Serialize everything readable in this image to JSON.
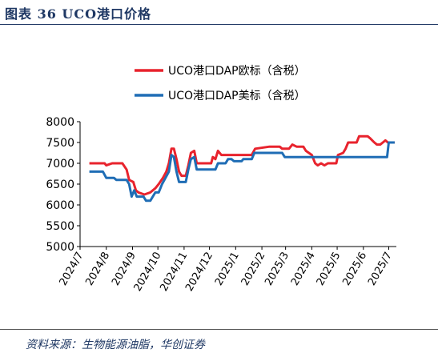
{
  "header": {
    "title": "图表 36   UCO港口价格"
  },
  "footer": {
    "source": "资料来源：生物能源油脂，华创证券"
  },
  "colors": {
    "eu_series": "#e8232d",
    "us_series": "#1f6db5",
    "title": "#1f3864"
  },
  "chart_data": {
    "type": "line",
    "title": "",
    "xlabel": "",
    "ylabel": "",
    "ylim": [
      5000,
      8000
    ],
    "yticks": [
      5000,
      5500,
      6000,
      6500,
      7000,
      7500,
      8000
    ],
    "x_tick_labels": [
      "2024/7",
      "2024/8",
      "2024/9",
      "2024/10",
      "2024/11",
      "2024/12",
      "2025/1",
      "2025/2",
      "2025/3",
      "2025/4",
      "2025/5",
      "2025/6",
      "2025/7"
    ],
    "legend_placement": "top",
    "grid": false,
    "series": [
      {
        "name": "UCO港口DAP欧标（含税）",
        "color": "#e8232d",
        "points": [
          [
            "2024-07-12",
            7000
          ],
          [
            "2024-07-30",
            7000
          ],
          [
            "2024-08-01",
            6950
          ],
          [
            "2024-08-08",
            7000
          ],
          [
            "2024-08-20",
            7000
          ],
          [
            "2024-08-25",
            6850
          ],
          [
            "2024-08-28",
            6600
          ],
          [
            "2024-09-02",
            6550
          ],
          [
            "2024-09-05",
            6350
          ],
          [
            "2024-09-08",
            6300
          ],
          [
            "2024-09-15",
            6250
          ],
          [
            "2024-09-22",
            6300
          ],
          [
            "2024-09-28",
            6400
          ],
          [
            "2024-10-02",
            6500
          ],
          [
            "2024-10-07",
            6650
          ],
          [
            "2024-10-11",
            6800
          ],
          [
            "2024-10-14",
            7000
          ],
          [
            "2024-10-17",
            7350
          ],
          [
            "2024-10-20",
            7350
          ],
          [
            "2024-10-23",
            7100
          ],
          [
            "2024-10-26",
            6800
          ],
          [
            "2024-10-29",
            6700
          ],
          [
            "2024-11-03",
            6700
          ],
          [
            "2024-11-06",
            6950
          ],
          [
            "2024-11-09",
            7250
          ],
          [
            "2024-11-13",
            7300
          ],
          [
            "2024-11-16",
            7000
          ],
          [
            "2024-12-03",
            7000
          ],
          [
            "2024-12-05",
            7150
          ],
          [
            "2024-12-08",
            7100
          ],
          [
            "2024-12-11",
            7300
          ],
          [
            "2024-12-15",
            7200
          ],
          [
            "2025-01-20",
            7200
          ],
          [
            "2025-01-24",
            7350
          ],
          [
            "2025-02-10",
            7400
          ],
          [
            "2025-02-22",
            7400
          ],
          [
            "2025-02-25",
            7350
          ],
          [
            "2025-03-05",
            7350
          ],
          [
            "2025-03-09",
            7450
          ],
          [
            "2025-03-14",
            7400
          ],
          [
            "2025-03-22",
            7400
          ],
          [
            "2025-03-25",
            7300
          ],
          [
            "2025-04-01",
            7200
          ],
          [
            "2025-04-05",
            7000
          ],
          [
            "2025-04-08",
            6950
          ],
          [
            "2025-04-12",
            7000
          ],
          [
            "2025-04-16",
            6950
          ],
          [
            "2025-04-20",
            7000
          ],
          [
            "2025-04-30",
            7000
          ],
          [
            "2025-05-02",
            7200
          ],
          [
            "2025-05-08",
            7250
          ],
          [
            "2025-05-11",
            7350
          ],
          [
            "2025-05-14",
            7500
          ],
          [
            "2025-05-24",
            7500
          ],
          [
            "2025-05-27",
            7650
          ],
          [
            "2025-06-06",
            7650
          ],
          [
            "2025-06-09",
            7600
          ],
          [
            "2025-06-14",
            7500
          ],
          [
            "2025-06-17",
            7450
          ],
          [
            "2025-06-21",
            7450
          ],
          [
            "2025-06-24",
            7500
          ],
          [
            "2025-06-27",
            7550
          ],
          [
            "2025-06-30",
            7500
          ],
          [
            "2025-07-03",
            7500
          ],
          [
            "2025-07-08",
            7500
          ]
        ]
      },
      {
        "name": "UCO港口DAP美标（含税）",
        "color": "#1f6db5",
        "points": [
          [
            "2024-07-12",
            6800
          ],
          [
            "2024-07-28",
            6800
          ],
          [
            "2024-08-01",
            6650
          ],
          [
            "2024-08-10",
            6650
          ],
          [
            "2024-08-13",
            6600
          ],
          [
            "2024-08-25",
            6600
          ],
          [
            "2024-08-28",
            6500
          ],
          [
            "2024-08-31",
            6200
          ],
          [
            "2024-09-03",
            6350
          ],
          [
            "2024-09-06",
            6200
          ],
          [
            "2024-09-14",
            6200
          ],
          [
            "2024-09-17",
            6100
          ],
          [
            "2024-09-22",
            6100
          ],
          [
            "2024-09-25",
            6200
          ],
          [
            "2024-09-28",
            6300
          ],
          [
            "2024-10-02",
            6300
          ],
          [
            "2024-10-06",
            6500
          ],
          [
            "2024-10-10",
            6650
          ],
          [
            "2024-10-14",
            6800
          ],
          [
            "2024-10-17",
            7200
          ],
          [
            "2024-10-20",
            7150
          ],
          [
            "2024-10-23",
            6800
          ],
          [
            "2024-10-26",
            6550
          ],
          [
            "2024-11-03",
            6550
          ],
          [
            "2024-11-06",
            6850
          ],
          [
            "2024-11-09",
            7100
          ],
          [
            "2024-11-13",
            7150
          ],
          [
            "2024-11-16",
            6850
          ],
          [
            "2024-12-08",
            6850
          ],
          [
            "2024-12-11",
            7000
          ],
          [
            "2024-12-20",
            7000
          ],
          [
            "2024-12-23",
            7100
          ],
          [
            "2024-12-27",
            7100
          ],
          [
            "2024-12-30",
            7050
          ],
          [
            "2025-01-08",
            7050
          ],
          [
            "2025-01-10",
            7100
          ],
          [
            "2025-01-20",
            7100
          ],
          [
            "2025-01-23",
            7250
          ],
          [
            "2025-02-25",
            7250
          ],
          [
            "2025-02-28",
            7150
          ],
          [
            "2025-06-29",
            7150
          ],
          [
            "2025-07-01",
            7500
          ],
          [
            "2025-07-08",
            7500
          ]
        ]
      }
    ]
  }
}
